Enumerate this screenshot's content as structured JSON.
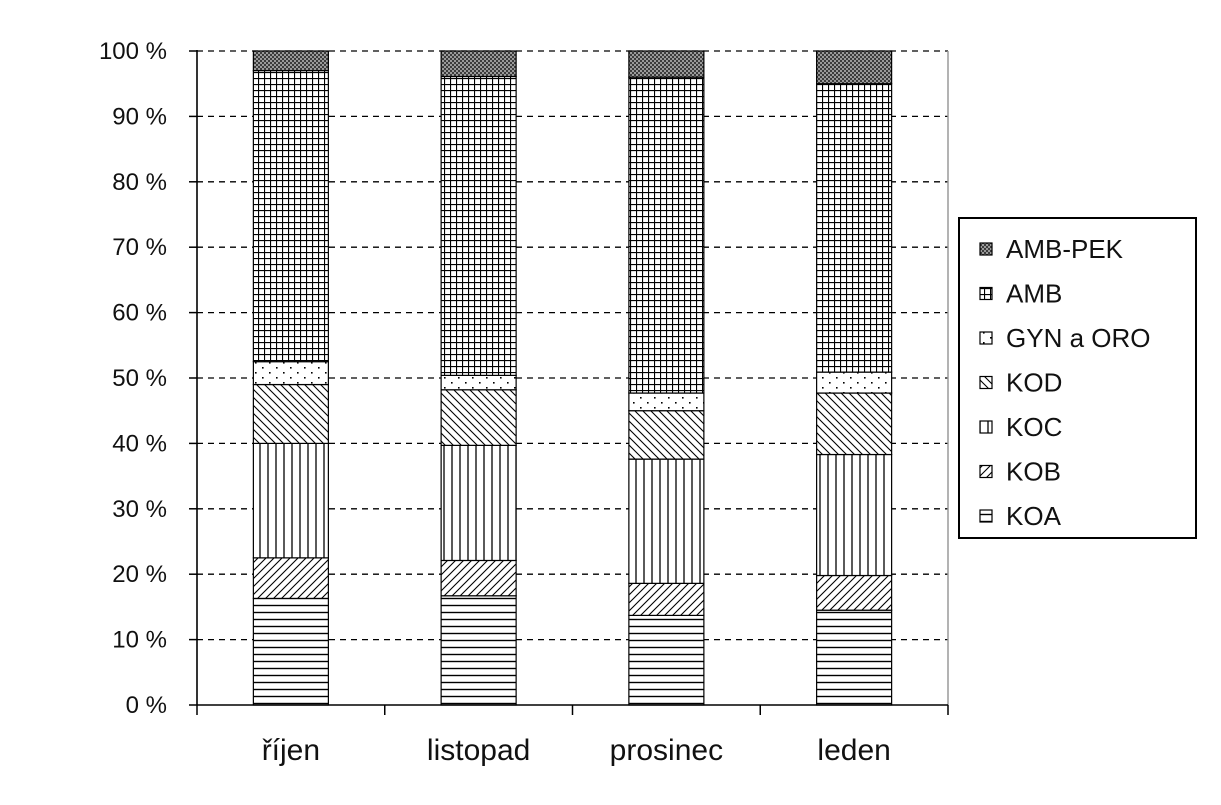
{
  "chart_data": {
    "type": "bar",
    "stacked": true,
    "percent_scale": true,
    "categories": [
      "říjen",
      "listopad",
      "prosinec",
      "leden"
    ],
    "series": [
      {
        "name": "KOA",
        "pattern": "horizontal-lines",
        "values": [
          16.3,
          16.7,
          13.7,
          14.5
        ]
      },
      {
        "name": "KOB",
        "pattern": "diagonal-up",
        "values": [
          6.2,
          5.4,
          4.9,
          5.3
        ]
      },
      {
        "name": "KOC",
        "pattern": "vertical-lines",
        "values": [
          17.5,
          17.6,
          19.0,
          18.5
        ]
      },
      {
        "name": "KOD",
        "pattern": "diagonal-down",
        "values": [
          9.0,
          8.5,
          7.4,
          9.4
        ]
      },
      {
        "name": "GYN a ORO",
        "pattern": "dots",
        "values": [
          3.5,
          2.2,
          2.7,
          3.2
        ]
      },
      {
        "name": "AMB",
        "pattern": "grid",
        "values": [
          44.5,
          45.7,
          48.3,
          44.1
        ]
      },
      {
        "name": "AMB-PEK",
        "pattern": "dense-check",
        "values": [
          3.0,
          3.9,
          4.0,
          5.0
        ]
      }
    ],
    "yticks": [
      "0 %",
      "10 %",
      "20 %",
      "30 %",
      "40 %",
      "50 %",
      "60 %",
      "70 %",
      "80 %",
      "90 %",
      "100 %"
    ],
    "ylim": [
      0,
      100
    ],
    "grid": "dashed horizontal",
    "legend": {
      "position": "right",
      "order": [
        "AMB-PEK",
        "AMB",
        "GYN a ORO",
        "KOD",
        "KOC",
        "KOB",
        "KOA"
      ]
    },
    "colors": {
      "stroke": "#000000",
      "background": "#ffffff"
    }
  }
}
